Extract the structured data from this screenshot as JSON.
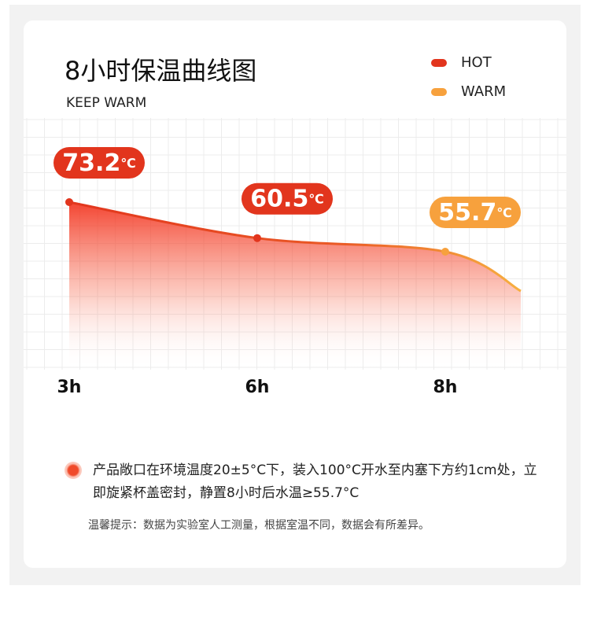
{
  "chart_data": {
    "type": "line",
    "title": "8小时保温曲线图",
    "subtitle": "KEEP WARM",
    "categories": [
      "3h",
      "6h",
      "8h"
    ],
    "values": [
      73.2,
      60.5,
      55.7
    ],
    "value_labels": [
      "73.2℃",
      "60.5℃",
      "55.7℃"
    ],
    "label_colors": [
      "#e2351d",
      "#e2351d",
      "#f7a13d"
    ],
    "legend": [
      {
        "name": "HOT",
        "color": "#e2351d"
      },
      {
        "name": "WARM",
        "color": "#f7a13d"
      }
    ],
    "grid": true
  },
  "note": "产品敞口在环境温度20±5°C下，装入100°C开水至内塞下方约1cm处，立即旋紧杯盖密封，静置8小时后水温≥55.7°C",
  "tip": "温馨提示：数据为实验室人工测量，根据室温不同，数据会有所差异。"
}
